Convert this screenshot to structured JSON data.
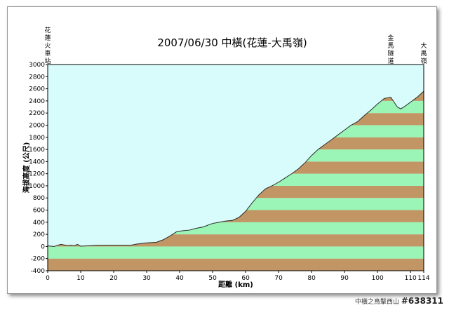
{
  "chart_data": {
    "type": "area",
    "title": "2007/06/30 中橫(花蓮-大禹嶺)",
    "xlabel": "距離 (km)",
    "ylabel": "海拔高度 (公尺)",
    "xlim": [
      0,
      114
    ],
    "ylim": [
      -400,
      3000
    ],
    "x_ticks": [
      0,
      10,
      20,
      30,
      40,
      50,
      60,
      70,
      80,
      90,
      100,
      110,
      114
    ],
    "y_ticks": [
      -400,
      -200,
      0,
      200,
      400,
      600,
      800,
      1000,
      1200,
      1400,
      1600,
      1800,
      2000,
      2200,
      2400,
      2600,
      2800,
      3000
    ],
    "band_height": 200,
    "colors": {
      "band_a": "#c29664",
      "band_b": "#9af5b6",
      "sky": "#d8fbfb",
      "line": "#2a2a2a"
    },
    "landmarks": [
      {
        "label": "花蓮火車站",
        "x": 0
      },
      {
        "label": "金馬隧道",
        "x": 104
      },
      {
        "label": "大禹嶺",
        "x": 114
      }
    ],
    "profile": [
      {
        "x": 0,
        "y": 10
      },
      {
        "x": 1,
        "y": 5
      },
      {
        "x": 2,
        "y": 0
      },
      {
        "x": 3,
        "y": 20
      },
      {
        "x": 4,
        "y": 35
      },
      {
        "x": 5,
        "y": 25
      },
      {
        "x": 6,
        "y": 15
      },
      {
        "x": 7,
        "y": 20
      },
      {
        "x": 8,
        "y": 10
      },
      {
        "x": 9,
        "y": 35
      },
      {
        "x": 10,
        "y": 5
      },
      {
        "x": 12,
        "y": 10
      },
      {
        "x": 15,
        "y": 20
      },
      {
        "x": 20,
        "y": 20
      },
      {
        "x": 25,
        "y": 20
      },
      {
        "x": 27,
        "y": 40
      },
      {
        "x": 30,
        "y": 60
      },
      {
        "x": 33,
        "y": 70
      },
      {
        "x": 35,
        "y": 110
      },
      {
        "x": 37,
        "y": 170
      },
      {
        "x": 39,
        "y": 240
      },
      {
        "x": 41,
        "y": 260
      },
      {
        "x": 43,
        "y": 270
      },
      {
        "x": 45,
        "y": 300
      },
      {
        "x": 47,
        "y": 320
      },
      {
        "x": 50,
        "y": 380
      },
      {
        "x": 52,
        "y": 400
      },
      {
        "x": 54,
        "y": 420
      },
      {
        "x": 56,
        "y": 430
      },
      {
        "x": 58,
        "y": 480
      },
      {
        "x": 60,
        "y": 580
      },
      {
        "x": 62,
        "y": 720
      },
      {
        "x": 64,
        "y": 850
      },
      {
        "x": 66,
        "y": 950
      },
      {
        "x": 68,
        "y": 1000
      },
      {
        "x": 70,
        "y": 1060
      },
      {
        "x": 72,
        "y": 1130
      },
      {
        "x": 74,
        "y": 1200
      },
      {
        "x": 76,
        "y": 1280
      },
      {
        "x": 78,
        "y": 1380
      },
      {
        "x": 80,
        "y": 1500
      },
      {
        "x": 82,
        "y": 1600
      },
      {
        "x": 84,
        "y": 1680
      },
      {
        "x": 86,
        "y": 1760
      },
      {
        "x": 88,
        "y": 1840
      },
      {
        "x": 90,
        "y": 1920
      },
      {
        "x": 92,
        "y": 2000
      },
      {
        "x": 94,
        "y": 2060
      },
      {
        "x": 96,
        "y": 2160
      },
      {
        "x": 98,
        "y": 2250
      },
      {
        "x": 100,
        "y": 2350
      },
      {
        "x": 102,
        "y": 2440
      },
      {
        "x": 104,
        "y": 2460
      },
      {
        "x": 105,
        "y": 2380
      },
      {
        "x": 106,
        "y": 2300
      },
      {
        "x": 107,
        "y": 2270
      },
      {
        "x": 108,
        "y": 2300
      },
      {
        "x": 110,
        "y": 2380
      },
      {
        "x": 112,
        "y": 2460
      },
      {
        "x": 114,
        "y": 2560
      }
    ]
  },
  "watermark": {
    "caption": "中橫之鳥擊西山",
    "number": "#638311"
  }
}
